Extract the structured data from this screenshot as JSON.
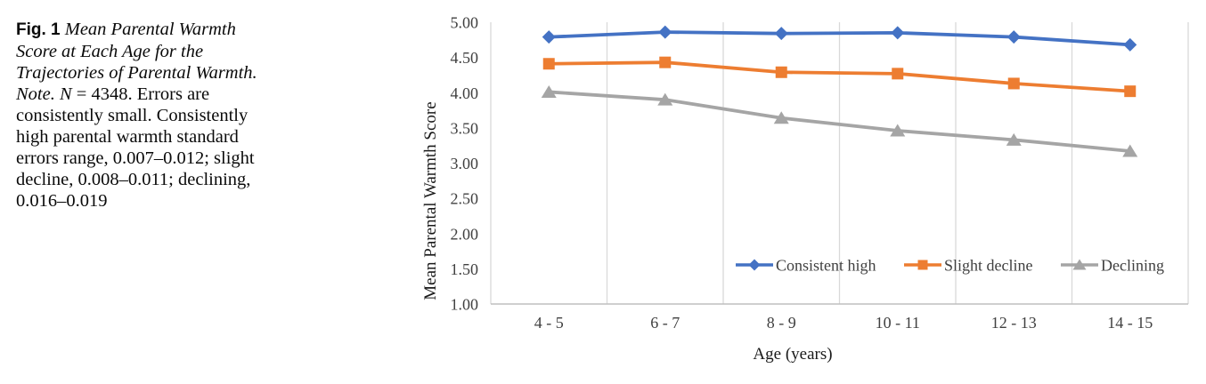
{
  "figure": {
    "caption_runs": [
      {
        "text": "Fig. 1",
        "style": "bold-sans"
      },
      {
        "text": " ",
        "style": "normal"
      },
      {
        "text": "Mean Parental Warmth Score at Each Age for the Trajectories of Parental Warmth. Note.",
        "style": "italic"
      },
      {
        "text": " ",
        "style": "normal"
      },
      {
        "text": "N",
        "style": "italic"
      },
      {
        "text": " = 4348. Errors are consistently small. Consistently high parental warmth standard errors range, 0.007–0.012; slight decline, 0.008–0.011; declining, 0.016–0.019",
        "style": "normal"
      }
    ]
  },
  "chart_data": {
    "type": "line",
    "categories": [
      "4 - 5",
      "6 - 7",
      "8 - 9",
      "10 - 11",
      "12 - 13",
      "14 - 15"
    ],
    "series": [
      {
        "name": "Consistent high",
        "marker": "diamond",
        "color": "#4472C4",
        "values": [
          4.79,
          4.86,
          4.84,
          4.85,
          4.79,
          4.68
        ]
      },
      {
        "name": "Slight decline",
        "marker": "square",
        "color": "#ED7D31",
        "values": [
          4.41,
          4.43,
          4.29,
          4.27,
          4.13,
          4.02
        ]
      },
      {
        "name": "Declining",
        "marker": "triangle",
        "color": "#A5A5A5",
        "values": [
          4.01,
          3.9,
          3.64,
          3.46,
          3.33,
          3.17
        ]
      }
    ],
    "title": "",
    "xlabel": "Age (years)",
    "ylabel": "Mean Parental Warmth Score",
    "ylim": [
      1.0,
      5.0
    ],
    "ytick_step": 0.5,
    "ytick_labels": [
      "5.00",
      "4.50",
      "4.00",
      "3.50",
      "3.00",
      "2.50",
      "2.00",
      "1.50",
      "1.00"
    ],
    "grid": "vertical-only",
    "legend_position": "inside-bottom-right",
    "gridline_color": "#D9D9D9",
    "axis_color": "#BFBFBF",
    "tick_text_color": "#404040"
  }
}
